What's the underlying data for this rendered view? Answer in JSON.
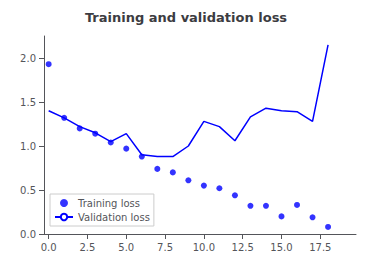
{
  "chart_data": {
    "type": "line",
    "title": "Training and validation loss",
    "series": [
      {
        "name": "Training loss",
        "type": "scatter",
        "marker": "circle",
        "color": "#0000ff",
        "x": [
          0.0,
          1.0,
          2.0,
          3.0,
          4.0,
          5.0,
          6.0,
          7.0,
          8.0,
          9.0,
          10.0,
          11.0,
          12.0,
          13.0,
          14.0,
          15.0,
          16.0,
          17.0,
          18.0,
          19.0
        ],
        "values": [
          1.93,
          1.32,
          1.2,
          1.14,
          1.04,
          0.97,
          0.88,
          0.74,
          0.7,
          0.61,
          0.55,
          0.52,
          0.44,
          0.32,
          0.32,
          0.2,
          0.33,
          0.19,
          0.08,
          null
        ]
      },
      {
        "name": "Validation loss",
        "type": "line",
        "line_style": "solid",
        "color": "#0000ff",
        "x": [
          0.0,
          1.0,
          2.0,
          3.0,
          4.0,
          5.0,
          6.0,
          7.0,
          8.0,
          9.0,
          10.0,
          11.0,
          12.0,
          13.0,
          14.0,
          15.0,
          16.0,
          17.0,
          18.0
        ],
        "values": [
          1.4,
          1.32,
          1.22,
          1.15,
          1.05,
          1.14,
          0.9,
          0.88,
          0.88,
          1.0,
          1.28,
          1.22,
          1.06,
          1.33,
          1.43,
          1.4,
          1.39,
          1.28,
          2.15
        ]
      }
    ],
    "xlim": [
      -0.3,
      19.8
    ],
    "ylim": [
      0.0,
      2.25
    ],
    "xticks": [
      {
        "value": 0.0,
        "label": "0.0"
      },
      2.5,
      {
        "value": 5.0,
        "label": "5.0"
      },
      7.5,
      {
        "value": 10.0,
        "label": "10.0"
      },
      12.5,
      {
        "value": 15.0,
        "label": "15.0"
      },
      17.5
    ],
    "yticks": [
      {
        "value": 0.0,
        "label": "0.0"
      },
      0.5,
      {
        "value": 1.0,
        "label": "1.0"
      },
      1.5,
      {
        "value": 2.0,
        "label": "2.0"
      }
    ],
    "legend": "lower left",
    "grid": false
  }
}
